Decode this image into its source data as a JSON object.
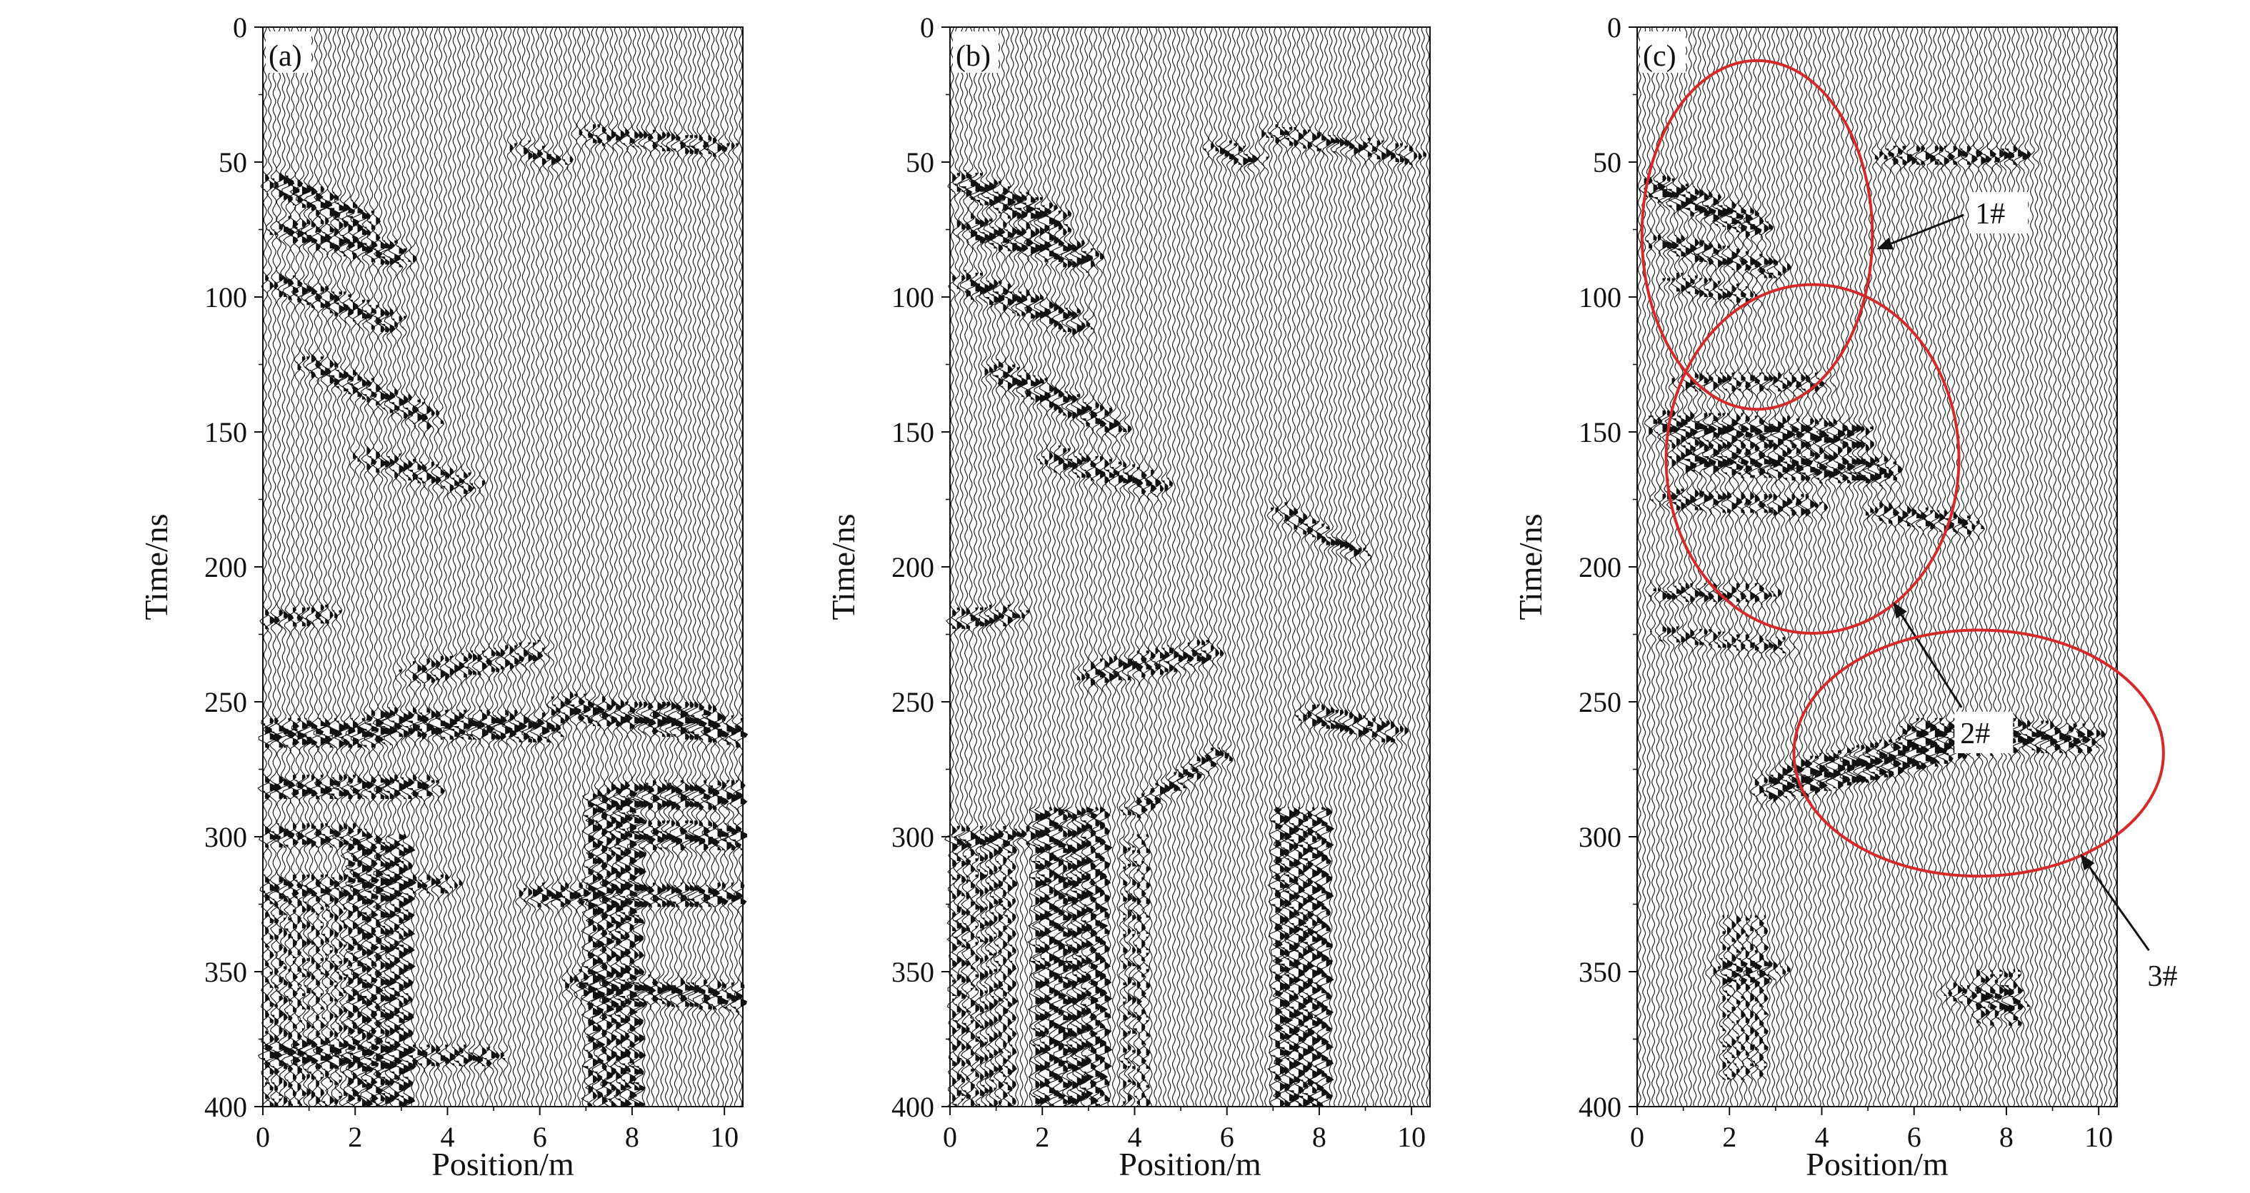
{
  "chart_data": [
    {
      "type": "heatmap",
      "panel_label": "(a)",
      "xlabel": "Position/m",
      "ylabel": "Time/ns",
      "xlim": [
        0,
        10.4
      ],
      "ylim": [
        0,
        400
      ],
      "y_inverted": true,
      "xticks": [
        "0",
        "2",
        "4",
        "6",
        "8",
        "10"
      ],
      "yticks": [
        "0",
        "50",
        "100",
        "150",
        "200",
        "250",
        "300",
        "350",
        "400"
      ],
      "grid": false,
      "colors": {
        "trace": "#111111",
        "background": "#ffffff"
      }
    },
    {
      "type": "heatmap",
      "panel_label": "(b)",
      "xlabel": "Position/m",
      "ylabel": "Time/ns",
      "xlim": [
        0,
        10.4
      ],
      "ylim": [
        0,
        400
      ],
      "y_inverted": true,
      "xticks": [
        "0",
        "2",
        "4",
        "6",
        "8",
        "10"
      ],
      "yticks": [
        "0",
        "50",
        "100",
        "150",
        "200",
        "250",
        "300",
        "350",
        "400"
      ],
      "grid": false,
      "colors": {
        "trace": "#111111",
        "background": "#ffffff"
      }
    },
    {
      "type": "heatmap",
      "panel_label": "(c)",
      "xlabel": "Position/m",
      "ylabel": "Time/ns",
      "xlim": [
        0,
        10.4
      ],
      "ylim": [
        0,
        400
      ],
      "y_inverted": true,
      "xticks": [
        "0",
        "2",
        "4",
        "6",
        "8",
        "10"
      ],
      "yticks": [
        "0",
        "50",
        "100",
        "150",
        "200",
        "250",
        "300",
        "350",
        "400"
      ],
      "grid": false,
      "colors": {
        "trace": "#111111",
        "background": "#ffffff",
        "annotation": "#d42a2a"
      },
      "annotations": [
        {
          "label": "1#",
          "center_x": 2.6,
          "center_time": 77,
          "half_width_x": 4.8,
          "half_height_time": 34
        },
        {
          "label": "2#",
          "center_x": 3.8,
          "center_time": 160,
          "half_width_x": 6.1,
          "half_height_time": 34
        },
        {
          "label": "3#",
          "center_x": 7.4,
          "center_time": 269,
          "half_width_x": 7.7,
          "half_height_time": 24
        }
      ]
    }
  ]
}
